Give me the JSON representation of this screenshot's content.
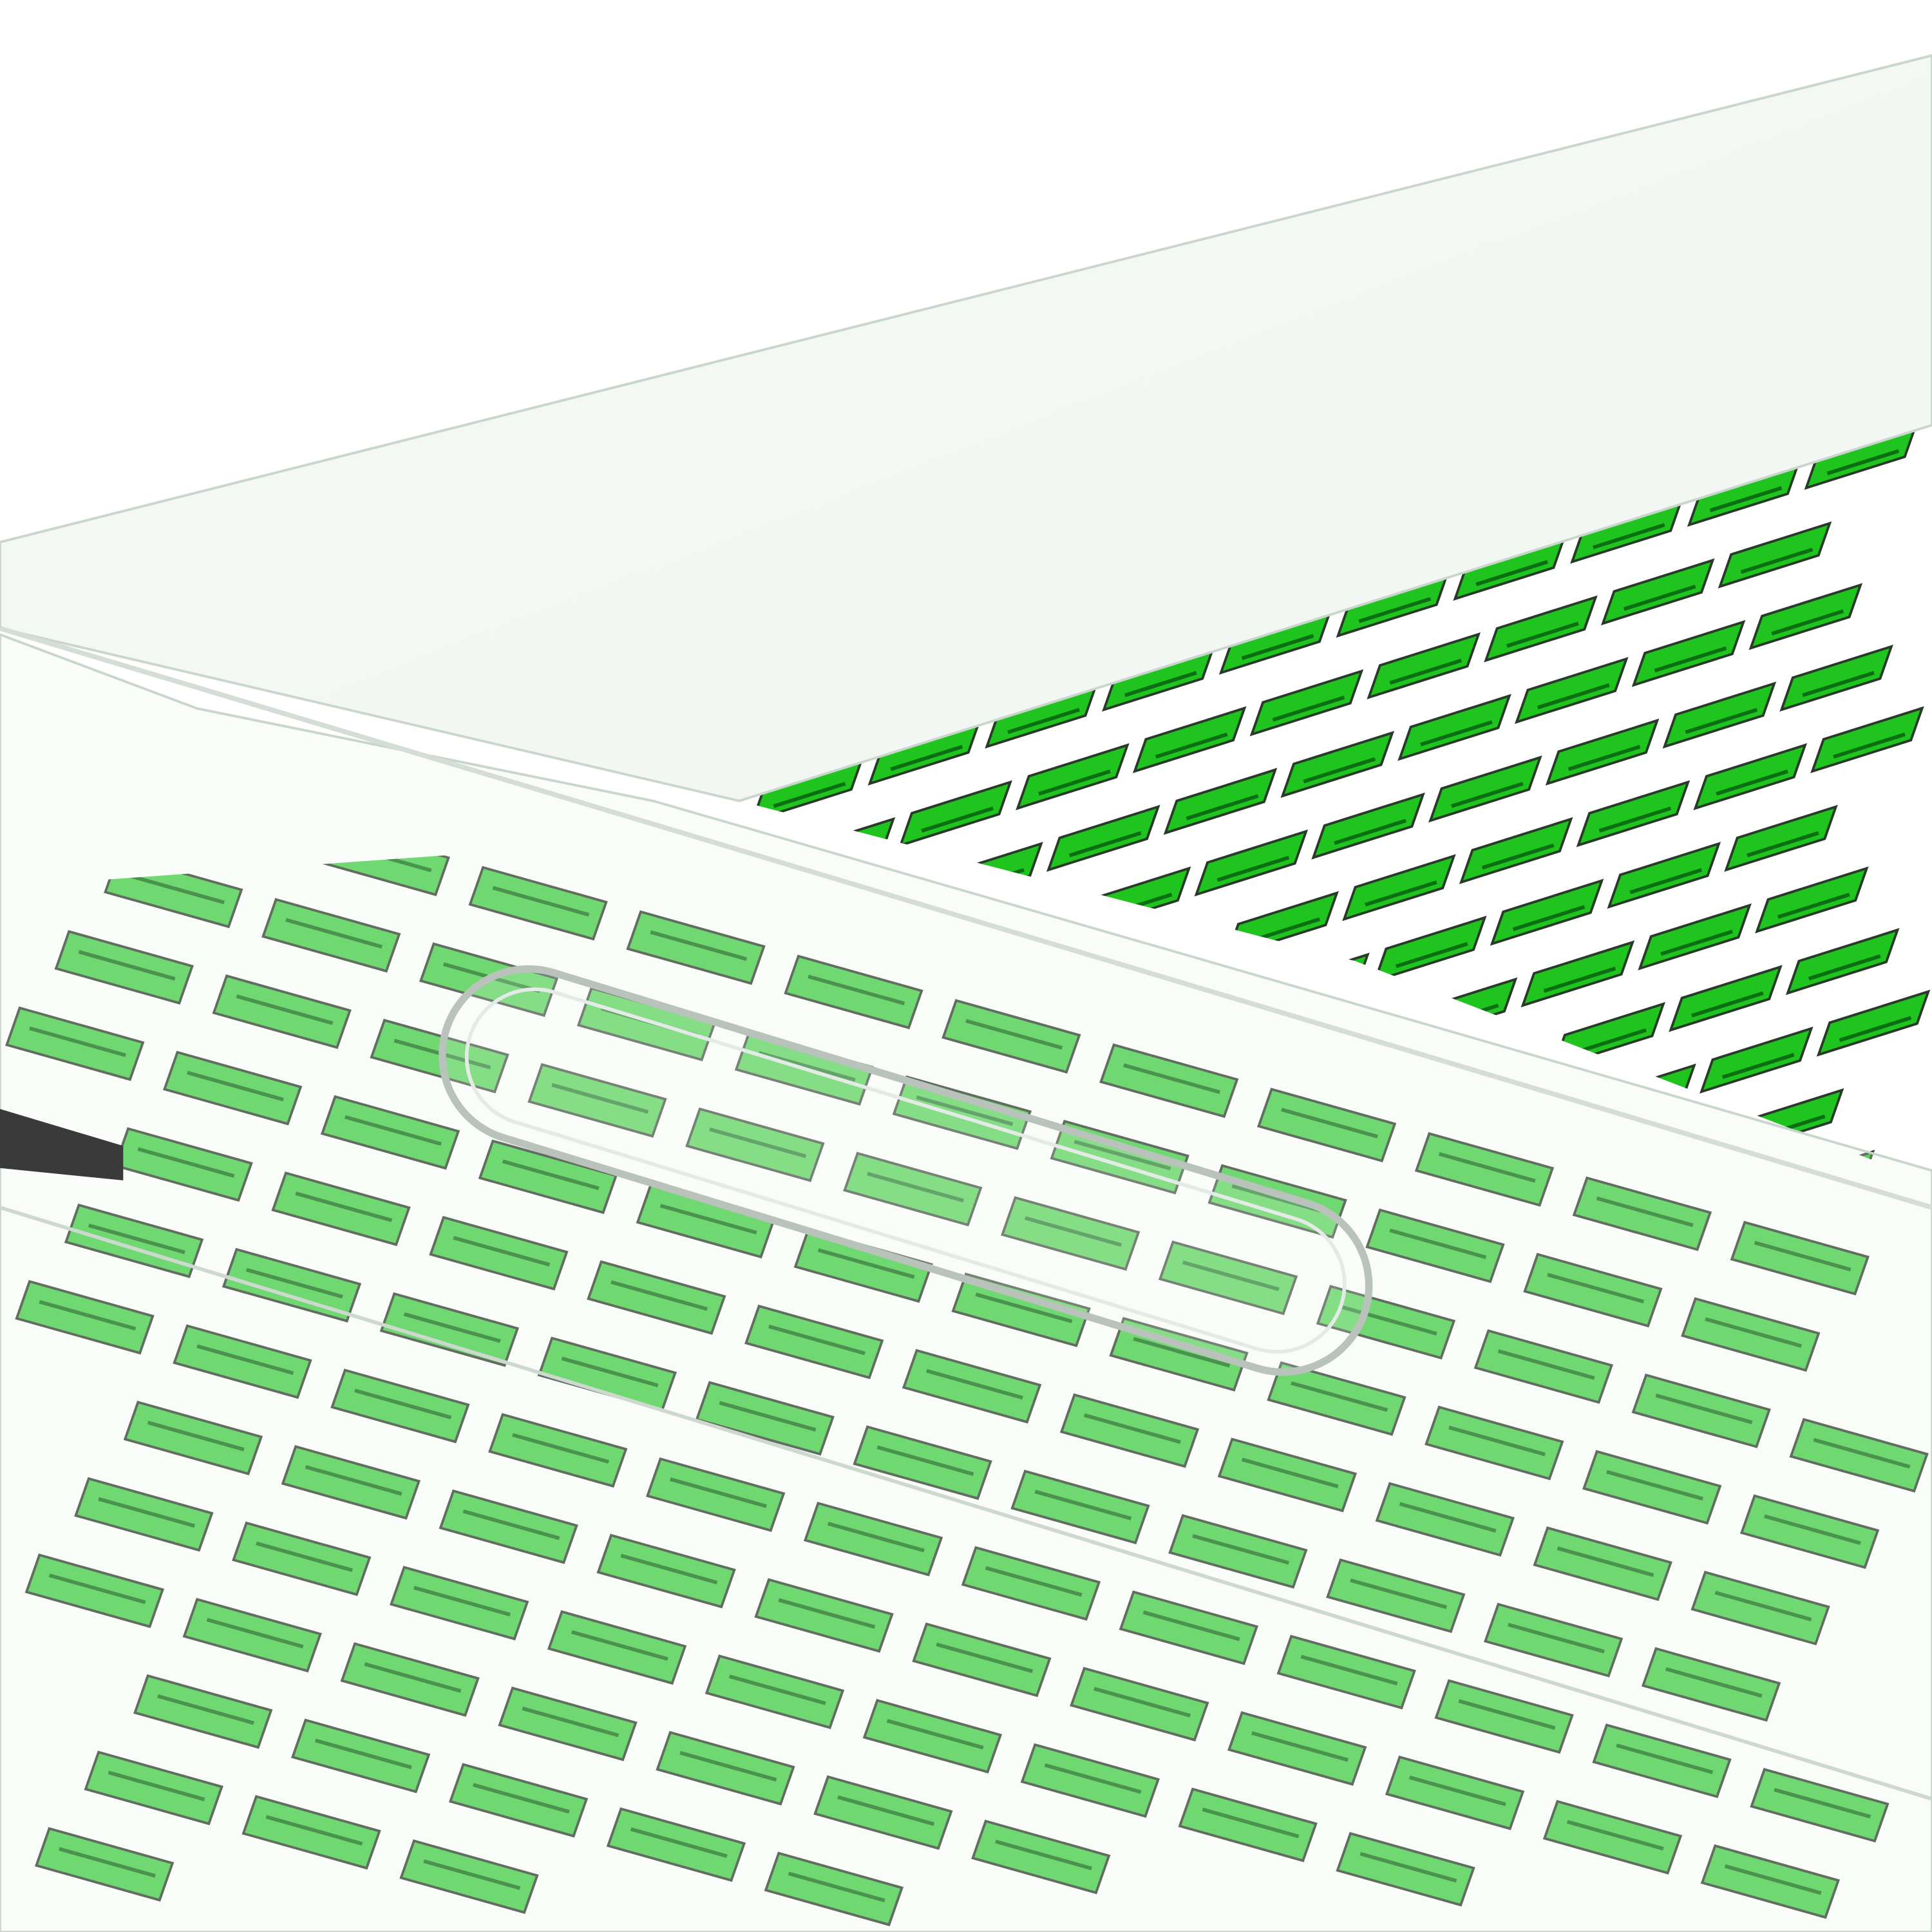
{
  "scene": {
    "subject": "acrylic-panel-over-green-tile-array",
    "colors": {
      "background": "#ffffff",
      "tile": "#1fc41f",
      "tile_dark": "#0b6e12",
      "tile_edge": "#2a3a2a",
      "glass": "#eef4ee",
      "glass_edge": "#c9d6cc",
      "dark_strip": "#3a3a3a"
    },
    "grids": [
      {
        "name": "lower-array",
        "rows": 16,
        "cols": 16
      },
      {
        "name": "upper-array",
        "rows": 14,
        "cols": 12
      }
    ]
  }
}
